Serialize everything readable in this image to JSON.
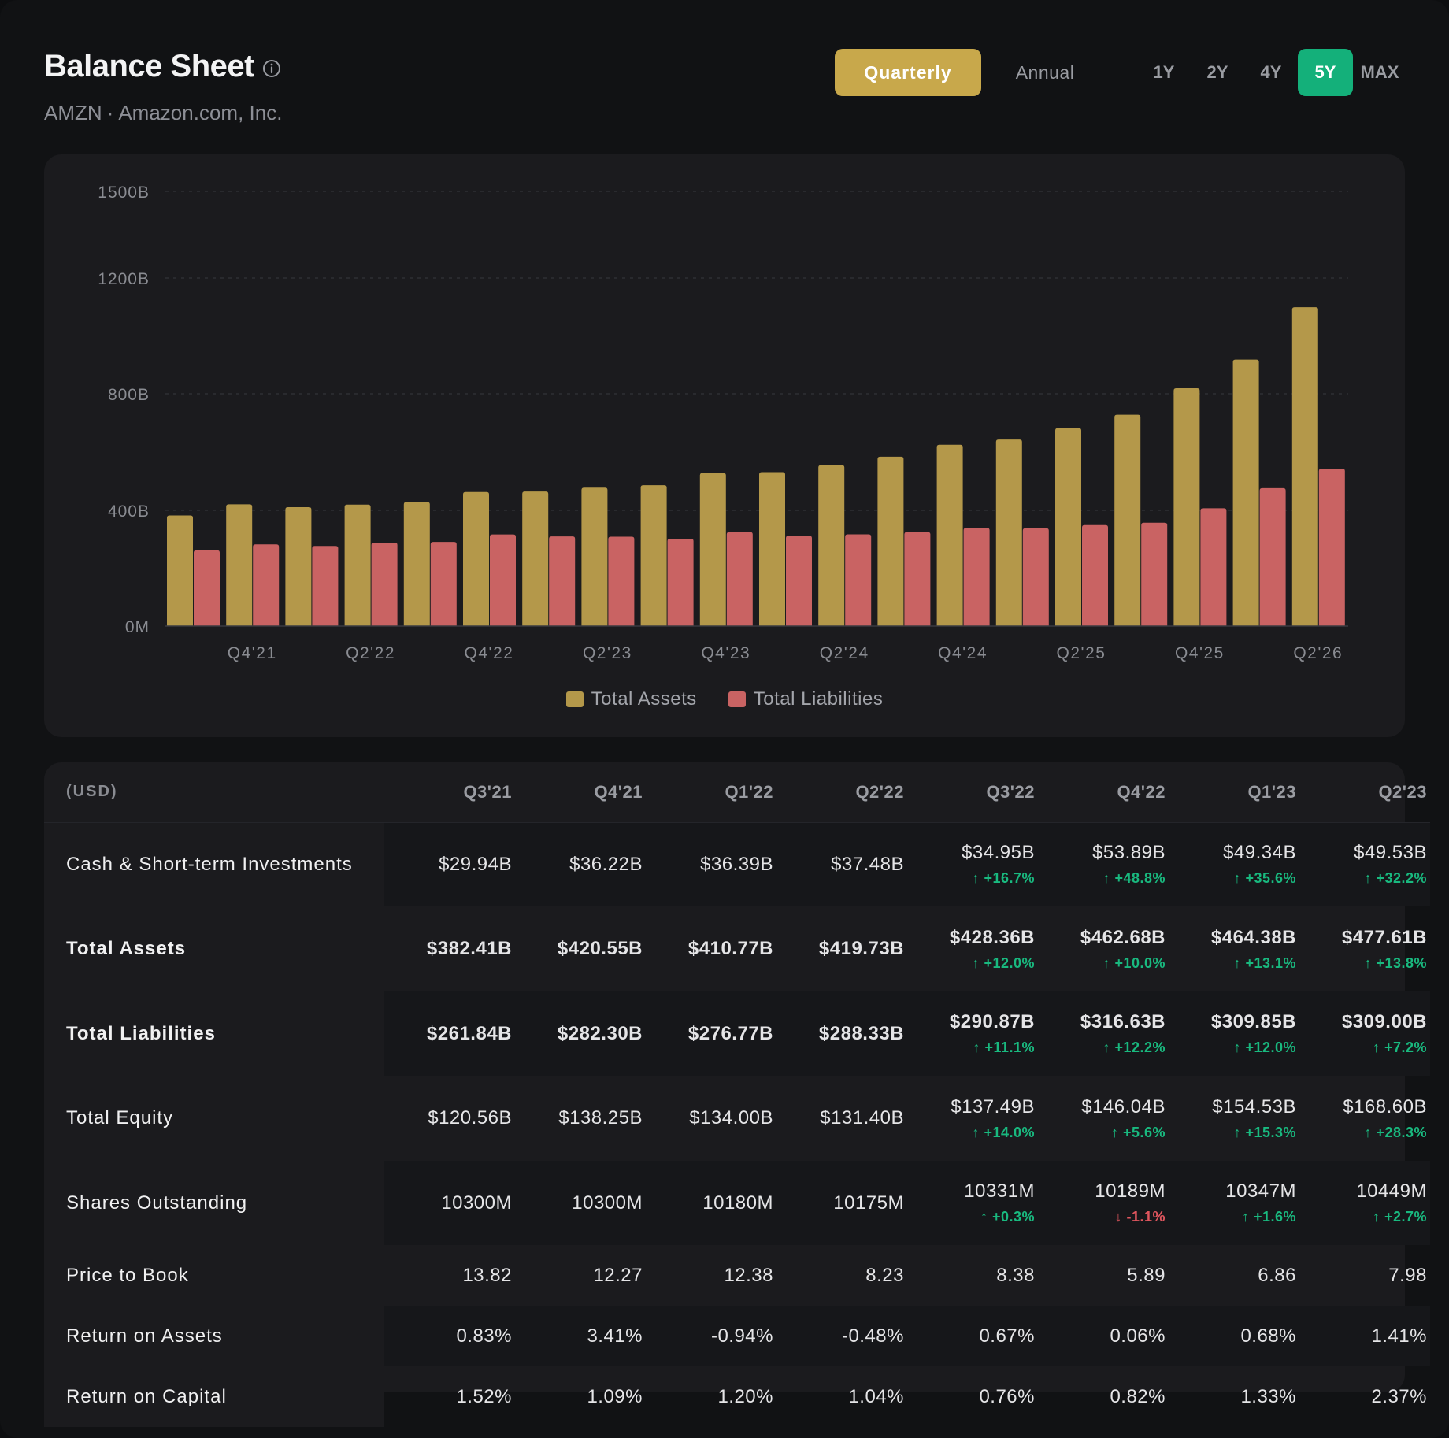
{
  "header": {
    "title": "Balance Sheet",
    "ticker": "AMZN",
    "separator": "·",
    "company": "Amazon.com, Inc."
  },
  "period_toggle": {
    "quarterly": "Quarterly",
    "annual": "Annual",
    "selected": "Quarterly"
  },
  "range_toggle": {
    "options": [
      "1Y",
      "2Y",
      "4Y",
      "5Y",
      "MAX"
    ],
    "selected": "5Y"
  },
  "colors": {
    "assets": "#b4984a",
    "liabilities": "#c96363",
    "accent_gold": "#c8a84b",
    "accent_green": "#14b07a"
  },
  "chart_data": {
    "type": "bar",
    "y_tick_labels": [
      "0M",
      "400B",
      "800B",
      "1200B",
      "1500B"
    ],
    "y_ticks": [
      0,
      400,
      800,
      1200,
      1500
    ],
    "x_tick_labels": [
      "Q4'21",
      "Q2'22",
      "Q4'22",
      "Q2'23",
      "Q4'23",
      "Q2'24",
      "Q4'24",
      "Q2'25",
      "Q4'25",
      "Q2'26"
    ],
    "categories": [
      "Q3'21",
      "Q4'21",
      "Q1'22",
      "Q2'22",
      "Q3'22",
      "Q4'22",
      "Q1'23",
      "Q2'23",
      "Q3'23",
      "Q4'23",
      "Q1'24",
      "Q2'24",
      "Q3'24",
      "Q4'24",
      "Q1'25",
      "Q2'25",
      "Q3'25",
      "Q4'25",
      "Q1'26",
      "Q2'26"
    ],
    "series": [
      {
        "name": "Total Assets",
        "values": [
          382.41,
          420.55,
          410.77,
          419.73,
          428.36,
          462.68,
          464.38,
          477.61,
          486,
          528,
          531,
          555,
          584,
          625,
          643,
          682,
          728,
          819,
          918,
          1099
        ]
      },
      {
        "name": "Total Liabilities",
        "values": [
          261.84,
          282.3,
          276.77,
          288.33,
          290.87,
          316.63,
          309.85,
          309.0,
          302,
          325,
          312,
          317,
          325,
          339,
          338,
          349,
          357,
          407,
          476,
          543
        ]
      }
    ],
    "ylim": [
      0,
      1500
    ],
    "grid": true,
    "legend": "bottom-center"
  },
  "table": {
    "unit_label": "(USD)",
    "columns": [
      "Q3'21",
      "Q4'21",
      "Q1'22",
      "Q2'22",
      "Q3'22",
      "Q4'22",
      "Q1'23",
      "Q2'23"
    ],
    "rows": [
      {
        "label": "Cash & Short-term Investments",
        "bold": false,
        "values": [
          "$29.94B",
          "$36.22B",
          "$36.39B",
          "$37.48B",
          "$34.95B",
          "$53.89B",
          "$49.34B",
          "$49.53B"
        ],
        "changes": [
          null,
          null,
          null,
          null,
          "↑ +16.7%",
          "↑ +48.8%",
          "↑ +35.6%",
          "↑ +32.2%"
        ],
        "change_dirs": [
          null,
          null,
          null,
          null,
          "up",
          "up",
          "up",
          "up"
        ]
      },
      {
        "label": "Total Assets",
        "bold": true,
        "values": [
          "$382.41B",
          "$420.55B",
          "$410.77B",
          "$419.73B",
          "$428.36B",
          "$462.68B",
          "$464.38B",
          "$477.61B"
        ],
        "changes": [
          null,
          null,
          null,
          null,
          "↑ +12.0%",
          "↑ +10.0%",
          "↑ +13.1%",
          "↑ +13.8%"
        ],
        "change_dirs": [
          null,
          null,
          null,
          null,
          "up",
          "up",
          "up",
          "up"
        ]
      },
      {
        "label": "Total Liabilities",
        "bold": true,
        "values": [
          "$261.84B",
          "$282.30B",
          "$276.77B",
          "$288.33B",
          "$290.87B",
          "$316.63B",
          "$309.85B",
          "$309.00B"
        ],
        "changes": [
          null,
          null,
          null,
          null,
          "↑ +11.1%",
          "↑ +12.2%",
          "↑ +12.0%",
          "↑ +7.2%"
        ],
        "change_dirs": [
          null,
          null,
          null,
          null,
          "up",
          "up",
          "up",
          "up"
        ]
      },
      {
        "label": "Total Equity",
        "bold": false,
        "values": [
          "$120.56B",
          "$138.25B",
          "$134.00B",
          "$131.40B",
          "$137.49B",
          "$146.04B",
          "$154.53B",
          "$168.60B"
        ],
        "changes": [
          null,
          null,
          null,
          null,
          "↑ +14.0%",
          "↑ +5.6%",
          "↑ +15.3%",
          "↑ +28.3%"
        ],
        "change_dirs": [
          null,
          null,
          null,
          null,
          "up",
          "up",
          "up",
          "up"
        ]
      },
      {
        "label": "Shares Outstanding",
        "bold": false,
        "values": [
          "10300M",
          "10300M",
          "10180M",
          "10175M",
          "10331M",
          "10189M",
          "10347M",
          "10449M"
        ],
        "changes": [
          null,
          null,
          null,
          null,
          "↑ +0.3%",
          "↓ -1.1%",
          "↑ +1.6%",
          "↑ +2.7%"
        ],
        "change_dirs": [
          null,
          null,
          null,
          null,
          "up",
          "down",
          "up",
          "up"
        ]
      },
      {
        "label": "Price to Book",
        "bold": false,
        "values": [
          "13.82",
          "12.27",
          "12.38",
          "8.23",
          "8.38",
          "5.89",
          "6.86",
          "7.98"
        ],
        "changes": [
          null,
          null,
          null,
          null,
          null,
          null,
          null,
          null
        ],
        "change_dirs": [
          null,
          null,
          null,
          null,
          null,
          null,
          null,
          null
        ]
      },
      {
        "label": "Return on Assets",
        "bold": false,
        "values": [
          "0.83%",
          "3.41%",
          "-0.94%",
          "-0.48%",
          "0.67%",
          "0.06%",
          "0.68%",
          "1.41%"
        ],
        "changes": [
          null,
          null,
          null,
          null,
          null,
          null,
          null,
          null
        ],
        "change_dirs": [
          null,
          null,
          null,
          null,
          null,
          null,
          null,
          null
        ]
      },
      {
        "label": "Return on Capital",
        "bold": false,
        "values": [
          "1.52%",
          "1.09%",
          "1.20%",
          "1.04%",
          "0.76%",
          "0.82%",
          "1.33%",
          "2.37%"
        ],
        "changes": [
          null,
          null,
          null,
          null,
          null,
          null,
          null,
          null
        ],
        "change_dirs": [
          null,
          null,
          null,
          null,
          null,
          null,
          null,
          null
        ]
      }
    ]
  }
}
